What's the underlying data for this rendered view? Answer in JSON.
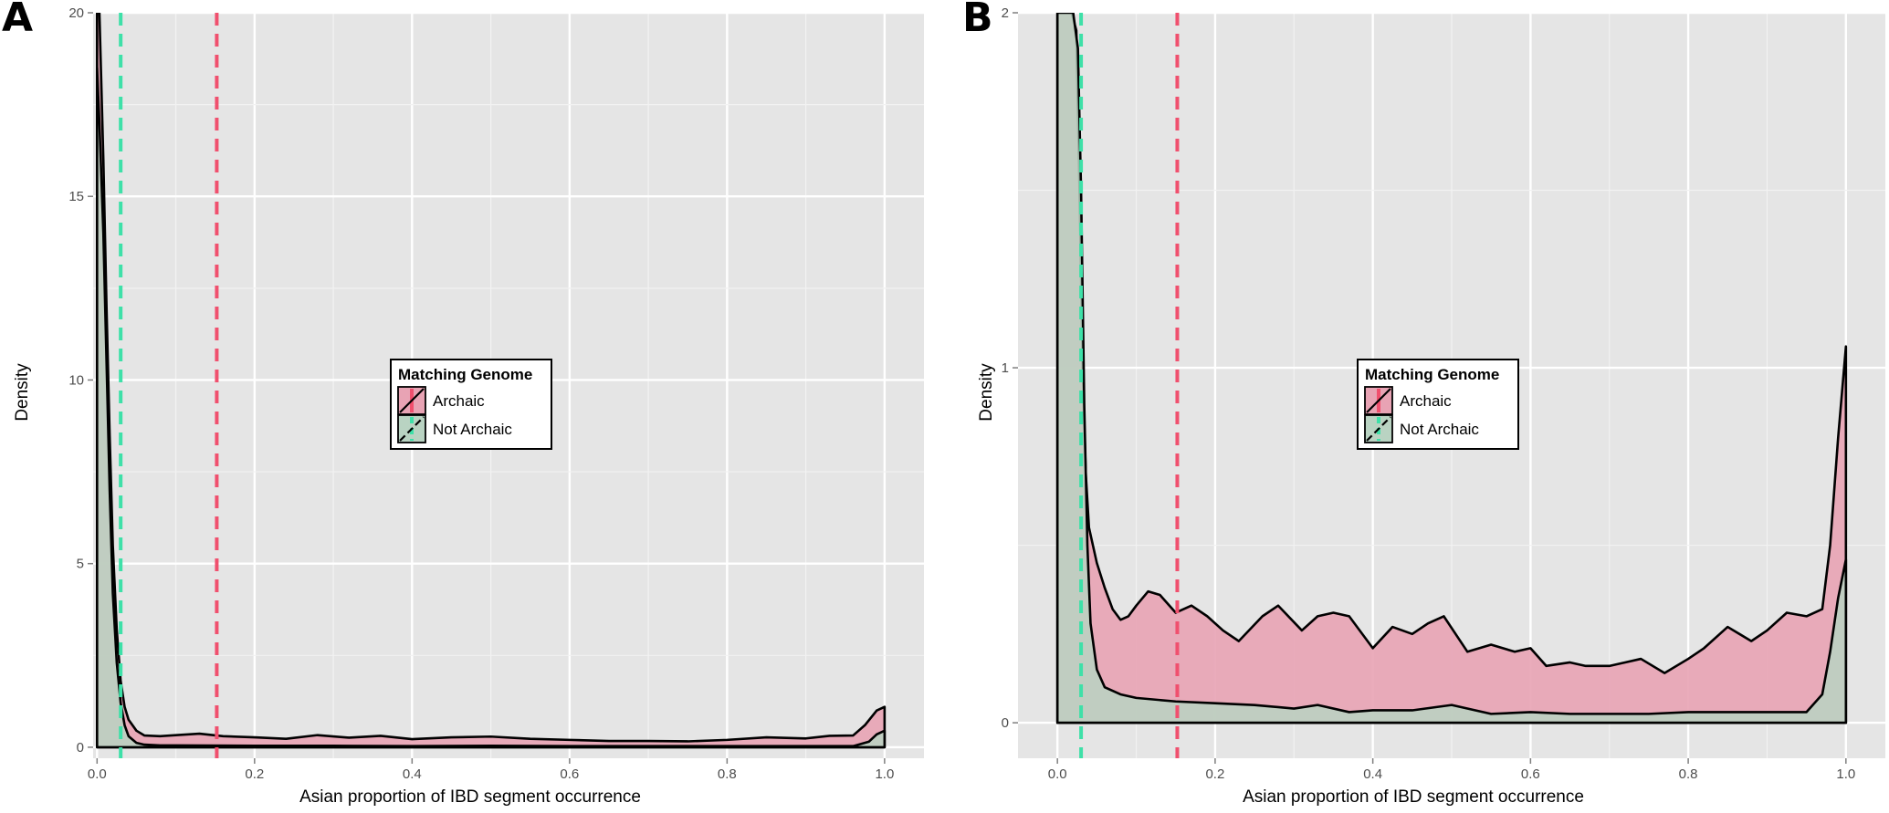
{
  "panels": [
    {
      "letter": "A",
      "xlabel": "Asian proportion of IBD segment occurrence",
      "ylabel": "Density",
      "legend_title": "Matching Genome",
      "legend_items": [
        "Archaic",
        "Not Archaic"
      ]
    },
    {
      "letter": "B",
      "xlabel": "Asian proportion of IBD segment occurrence",
      "ylabel": "Density",
      "legend_title": "Matching Genome",
      "legend_items": [
        "Archaic",
        "Not Archaic"
      ]
    }
  ],
  "colors": {
    "archaic": "#f0506e",
    "not_archaic": "#3ee0a8",
    "archaic_fill": "#e8a3b4",
    "not_archaic_fill": "#b9d3c2",
    "panel_bg": "#e5e5e5"
  },
  "chart_data": [
    {
      "type": "area",
      "xlabel": "Asian proportion of IBD segment occurrence",
      "ylabel": "Density",
      "xlim": [
        -0.005,
        1.05
      ],
      "ylim": [
        -0.3,
        20
      ],
      "xticks": [
        "0.0",
        "0.2",
        "0.4",
        "0.6",
        "0.8",
        "1.0"
      ],
      "yticks": [
        "0",
        "5",
        "10",
        "15",
        "20"
      ],
      "grid": true,
      "legend": "center",
      "series": [
        {
          "name": "Archaic",
          "x": [
            0,
            0.003,
            0.008,
            0.012,
            0.016,
            0.02,
            0.025,
            0.03,
            0.035,
            0.04,
            0.05,
            0.06,
            0.08,
            0.1,
            0.13,
            0.16,
            0.2,
            0.24,
            0.28,
            0.32,
            0.36,
            0.4,
            0.45,
            0.5,
            0.55,
            0.6,
            0.65,
            0.7,
            0.75,
            0.8,
            0.85,
            0.9,
            0.93,
            0.96,
            0.975,
            0.99,
            1.0
          ],
          "y": [
            20,
            20,
            16,
            12,
            8.5,
            5.5,
            3.2,
            1.8,
            1.1,
            0.75,
            0.45,
            0.32,
            0.3,
            0.33,
            0.37,
            0.3,
            0.27,
            0.23,
            0.33,
            0.26,
            0.31,
            0.22,
            0.27,
            0.29,
            0.23,
            0.2,
            0.17,
            0.17,
            0.16,
            0.2,
            0.27,
            0.24,
            0.31,
            0.32,
            0.6,
            1.0,
            1.1
          ]
        },
        {
          "name": "Not Archaic",
          "x": [
            0,
            0.003,
            0.008,
            0.012,
            0.016,
            0.02,
            0.025,
            0.03,
            0.035,
            0.04,
            0.05,
            0.06,
            0.08,
            0.1,
            0.2,
            0.3,
            0.4,
            0.5,
            0.6,
            0.7,
            0.8,
            0.9,
            0.96,
            0.98,
            0.99,
            1.0
          ],
          "y": [
            18.5,
            17,
            14,
            10.5,
            7,
            4.2,
            2.3,
            1.2,
            0.6,
            0.3,
            0.12,
            0.07,
            0.05,
            0.05,
            0.04,
            0.04,
            0.03,
            0.04,
            0.03,
            0.03,
            0.03,
            0.03,
            0.03,
            0.15,
            0.35,
            0.45
          ]
        }
      ],
      "vlines": [
        {
          "series": "Archaic",
          "x": 0.152
        },
        {
          "series": "Not Archaic",
          "x": 0.03
        }
      ]
    },
    {
      "type": "area",
      "xlabel": "Asian proportion of IBD segment occurrence",
      "ylabel": "Density",
      "xlim": [
        -0.05,
        1.05
      ],
      "ylim": [
        -0.1,
        2.0
      ],
      "xticks": [
        "0.0",
        "0.2",
        "0.4",
        "0.6",
        "0.8",
        "1.0"
      ],
      "yticks": [
        "0",
        "1",
        "2"
      ],
      "grid": true,
      "legend": "center",
      "series": [
        {
          "name": "Archaic",
          "x": [
            0,
            0.01,
            0.018,
            0.024,
            0.028,
            0.032,
            0.036,
            0.04,
            0.05,
            0.06,
            0.07,
            0.08,
            0.09,
            0.1,
            0.115,
            0.13,
            0.15,
            0.17,
            0.19,
            0.21,
            0.23,
            0.26,
            0.28,
            0.31,
            0.33,
            0.35,
            0.37,
            0.4,
            0.425,
            0.45,
            0.47,
            0.49,
            0.52,
            0.55,
            0.58,
            0.6,
            0.62,
            0.65,
            0.67,
            0.7,
            0.74,
            0.77,
            0.8,
            0.82,
            0.85,
            0.88,
            0.9,
            0.925,
            0.95,
            0.97,
            0.98,
            0.99,
            1.0
          ],
          "y": [
            2.0,
            2.0,
            2.0,
            1.95,
            1.5,
            1.0,
            0.7,
            0.55,
            0.45,
            0.38,
            0.32,
            0.29,
            0.3,
            0.33,
            0.37,
            0.36,
            0.31,
            0.33,
            0.3,
            0.26,
            0.23,
            0.3,
            0.33,
            0.26,
            0.3,
            0.31,
            0.3,
            0.21,
            0.27,
            0.25,
            0.28,
            0.3,
            0.2,
            0.22,
            0.2,
            0.21,
            0.16,
            0.17,
            0.16,
            0.16,
            0.18,
            0.14,
            0.18,
            0.21,
            0.27,
            0.23,
            0.26,
            0.31,
            0.3,
            0.32,
            0.5,
            0.8,
            1.06
          ]
        },
        {
          "name": "Not Archaic",
          "x": [
            0,
            0.01,
            0.02,
            0.026,
            0.03,
            0.034,
            0.038,
            0.042,
            0.05,
            0.06,
            0.08,
            0.1,
            0.15,
            0.2,
            0.25,
            0.3,
            0.33,
            0.37,
            0.4,
            0.45,
            0.5,
            0.55,
            0.6,
            0.65,
            0.7,
            0.75,
            0.8,
            0.85,
            0.9,
            0.95,
            0.97,
            0.98,
            0.99,
            1.0
          ],
          "y": [
            2.0,
            2.0,
            2.0,
            1.9,
            1.5,
            0.9,
            0.5,
            0.28,
            0.15,
            0.1,
            0.08,
            0.07,
            0.06,
            0.055,
            0.05,
            0.04,
            0.05,
            0.03,
            0.035,
            0.035,
            0.05,
            0.025,
            0.03,
            0.025,
            0.025,
            0.025,
            0.03,
            0.03,
            0.03,
            0.03,
            0.08,
            0.2,
            0.35,
            0.46
          ]
        }
      ],
      "vlines": [
        {
          "series": "Archaic",
          "x": 0.152
        },
        {
          "series": "Not Archaic",
          "x": 0.03
        }
      ]
    }
  ]
}
